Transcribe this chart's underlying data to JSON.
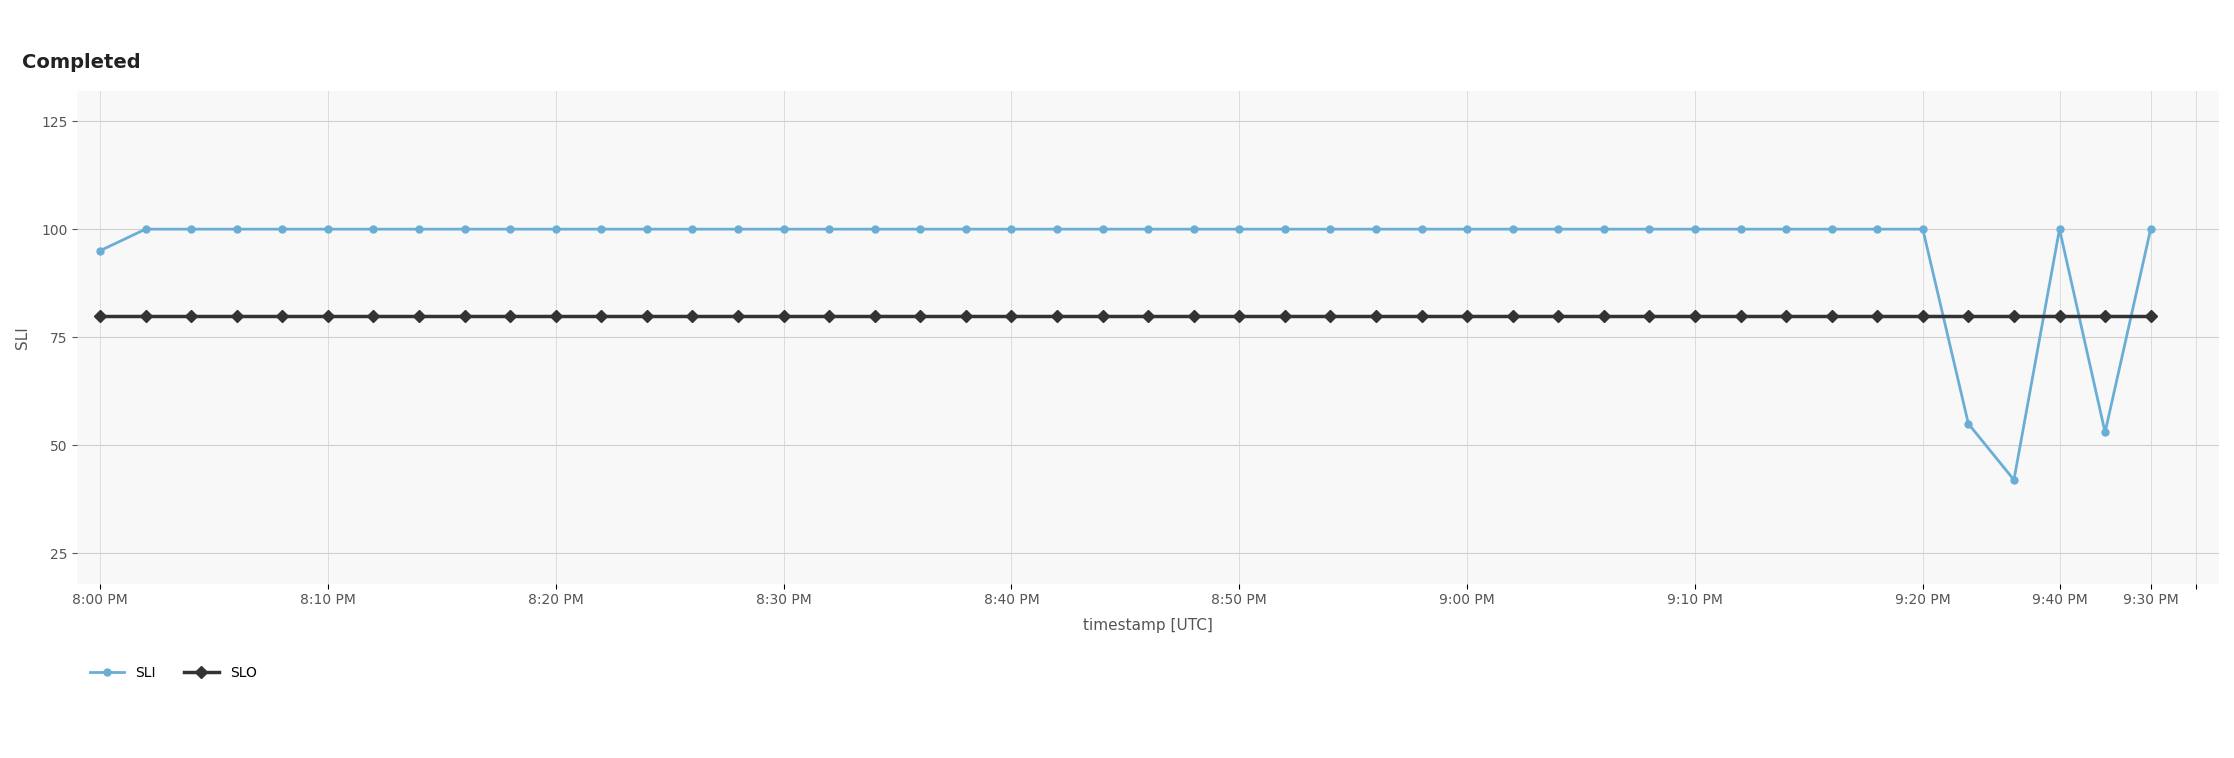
{
  "title": "Completed",
  "ylabel": "SLI",
  "xlabel": "timestamp [UTC]",
  "sli_x": [
    0,
    2,
    4,
    6,
    8,
    10,
    12,
    14,
    16,
    18,
    20,
    22,
    24,
    26,
    28,
    30,
    32,
    34,
    36,
    38,
    40,
    42,
    44,
    46,
    48,
    50,
    52,
    54,
    56,
    58,
    60,
    62,
    64,
    66,
    68,
    70,
    72,
    74,
    76,
    78,
    80,
    82,
    84,
    86,
    88,
    90
  ],
  "sli_y": [
    95,
    100,
    100,
    100,
    100,
    100,
    100,
    100,
    100,
    100,
    100,
    100,
    100,
    100,
    100,
    100,
    100,
    100,
    100,
    100,
    100,
    100,
    100,
    100,
    100,
    100,
    100,
    100,
    100,
    100,
    100,
    100,
    100,
    100,
    100,
    100,
    100,
    100,
    100,
    100,
    100,
    55,
    42,
    100,
    53,
    100
  ],
  "slo_x": [
    0,
    2,
    4,
    6,
    8,
    10,
    12,
    14,
    16,
    18,
    20,
    22,
    24,
    26,
    28,
    30,
    32,
    34,
    36,
    38,
    40,
    42,
    44,
    46,
    48,
    50,
    52,
    54,
    56,
    58,
    60,
    62,
    64,
    66,
    68,
    70,
    72,
    74,
    76,
    78,
    80,
    82,
    84,
    86,
    88,
    90
  ],
  "slo_y": [
    80,
    80,
    80,
    80,
    80,
    80,
    80,
    80,
    80,
    80,
    80,
    80,
    80,
    80,
    80,
    80,
    80,
    80,
    80,
    80,
    80,
    80,
    80,
    80,
    80,
    80,
    80,
    80,
    80,
    80,
    80,
    80,
    80,
    80,
    80,
    80,
    80,
    80,
    80,
    80,
    80,
    80,
    80,
    80,
    80,
    80
  ],
  "x_tick_positions": [
    0,
    10,
    20,
    30,
    40,
    50,
    60,
    70,
    80,
    90
  ],
  "x_tick_labels": [
    "8:00 PM",
    "8:10 PM",
    "8:20 PM",
    "8:30 PM",
    "8:40 PM",
    "8:50 PM",
    "9:00 PM",
    "9:10 PM",
    "9:20 PM",
    "9:30 PM"
  ],
  "xlim": [
    -1,
    93
  ],
  "ylim": [
    18,
    132
  ],
  "yticks": [
    25,
    50,
    75,
    100,
    125
  ],
  "sli_color": "#6aaed6",
  "slo_color": "#333333",
  "bg_color": "#ffffff",
  "plot_bg_color": "#f8f8f8",
  "grid_color": "#d0d0d0",
  "title_fontsize": 14,
  "axis_label_fontsize": 11,
  "tick_fontsize": 10,
  "legend_sli": "SLI",
  "legend_slo": "SLO"
}
